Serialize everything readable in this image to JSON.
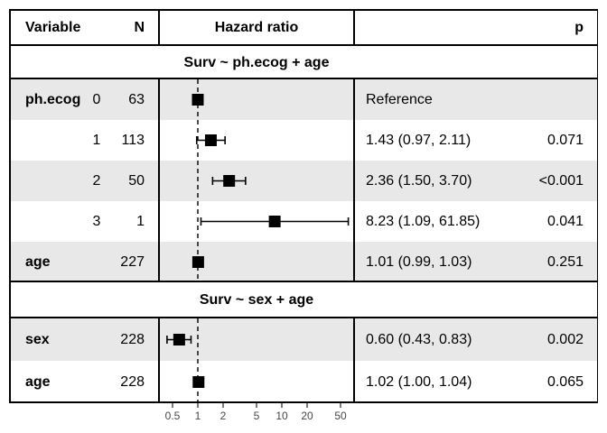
{
  "header": {
    "variable": "Variable",
    "n": "N",
    "hazard_ratio": "Hazard ratio",
    "p": "p"
  },
  "axis": {
    "tick_labels": [
      "0.5",
      "1",
      "2",
      "5",
      "10",
      "20",
      "50"
    ]
  },
  "colors": {
    "row_shade": "#e8e8e8",
    "marker": "#000000",
    "border": "#000000",
    "tick_text": "#474747"
  },
  "chart_data": {
    "type": "scatter",
    "variant": "forest-plot",
    "xscale": "log",
    "xticks": [
      0.5,
      1,
      2,
      5,
      10,
      20,
      50
    ],
    "xrange": [
      0.4,
      70
    ],
    "reference_line": 1,
    "legend": "none",
    "grid": "off",
    "groups": [
      {
        "model": "Surv ~ ph.ecog + age",
        "points": [
          {
            "variable": "ph.ecog",
            "level": "0",
            "n": "63",
            "hr": 1.0,
            "ci_low": null,
            "ci_high": null,
            "estimate_text": "Reference",
            "p_text": ""
          },
          {
            "variable": "",
            "level": "1",
            "n": "113",
            "hr": 1.43,
            "ci_low": 0.97,
            "ci_high": 2.11,
            "estimate_text": "1.43 (0.97, 2.11)",
            "p_text": "0.071"
          },
          {
            "variable": "",
            "level": "2",
            "n": "50",
            "hr": 2.36,
            "ci_low": 1.5,
            "ci_high": 3.7,
            "estimate_text": "2.36 (1.50, 3.70)",
            "p_text": "<0.001"
          },
          {
            "variable": "",
            "level": "3",
            "n": "1",
            "hr": 8.23,
            "ci_low": 1.09,
            "ci_high": 61.85,
            "estimate_text": "8.23 (1.09, 61.85)",
            "p_text": "0.041"
          },
          {
            "variable": "age",
            "level": "",
            "n": "227",
            "hr": 1.01,
            "ci_low": 0.99,
            "ci_high": 1.03,
            "estimate_text": "1.01 (0.99, 1.03)",
            "p_text": "0.251"
          }
        ]
      },
      {
        "model": "Surv ~ sex + age",
        "points": [
          {
            "variable": "sex",
            "level": "",
            "n": "228",
            "hr": 0.6,
            "ci_low": 0.43,
            "ci_high": 0.83,
            "estimate_text": "0.60 (0.43, 0.83)",
            "p_text": "0.002"
          },
          {
            "variable": "age",
            "level": "",
            "n": "228",
            "hr": 1.02,
            "ci_low": 1.0,
            "ci_high": 1.04,
            "estimate_text": "1.02 (1.00, 1.04)",
            "p_text": "0.065"
          }
        ]
      }
    ]
  }
}
